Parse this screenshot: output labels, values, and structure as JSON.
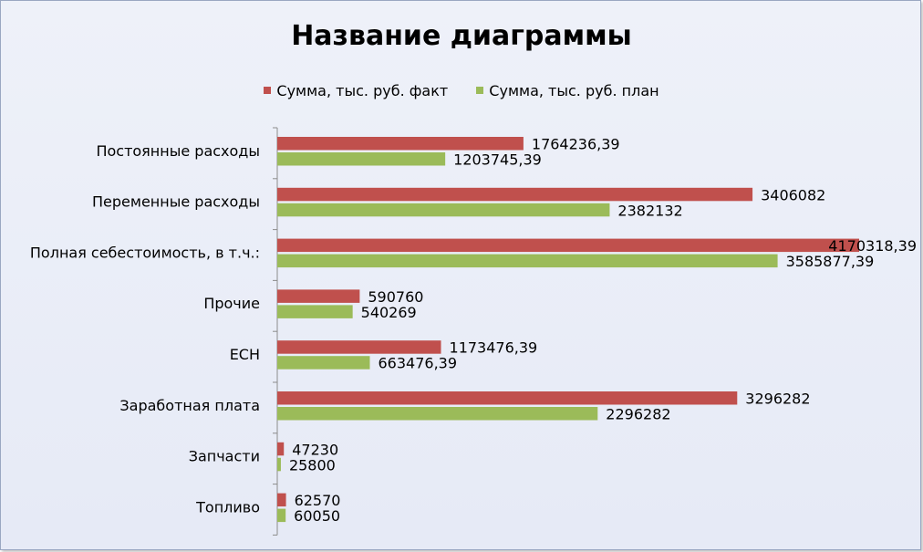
{
  "chart_data": {
    "type": "bar",
    "orientation": "horizontal",
    "title": "Название диаграммы",
    "legend_position": "top",
    "categories": [
      "Постоянные расходы",
      "Переменные расходы",
      "Полная себестоимость, в т.ч.:",
      "Прочие",
      "ЕСН",
      "Заработная плата",
      "Запчасти",
      "Топливо"
    ],
    "series": [
      {
        "name": "Сумма, тыс. руб. факт",
        "color": "#c0504d",
        "values": [
          1764236.39,
          3406082,
          4170318.39,
          590760,
          1173476.39,
          3296282,
          47230,
          62570
        ],
        "labels": [
          "1764236,39",
          "3406082",
          "4170318,39",
          "590760",
          "1173476,39",
          "3296282",
          "47230",
          "62570"
        ]
      },
      {
        "name": "Сумма, тыс. руб. план",
        "color": "#9bbb59",
        "values": [
          1203745.39,
          2382132,
          3585877.39,
          540269,
          663476.39,
          2296282,
          25800,
          60050
        ],
        "labels": [
          "1203745,39",
          "2382132",
          "3585877,39",
          "540269",
          "663476,39",
          "2296282",
          "25800",
          "60050"
        ]
      }
    ],
    "xlim": [
      0,
      4170318.39
    ],
    "grid": false
  }
}
